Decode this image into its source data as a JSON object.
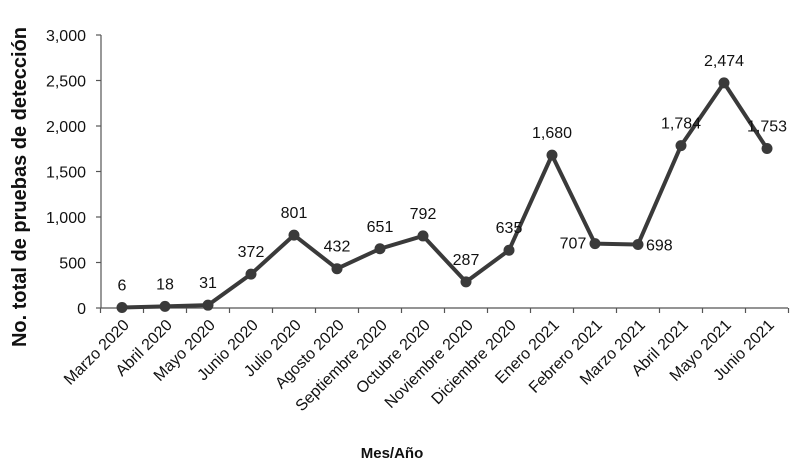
{
  "chart_data": {
    "type": "line",
    "title": "",
    "xlabel": "Mes/Año",
    "ylabel": "No. total de pruebas de detección",
    "ylim": [
      0,
      3000
    ],
    "yticks": [
      "0",
      "500",
      "1,000",
      "1,500",
      "2,000",
      "2,500",
      "3,000"
    ],
    "grid": false,
    "legend": "none",
    "line_color": "#3a3a3a",
    "categories": [
      "Marzo 2020",
      "Abril 2020",
      "Mayo 2020",
      "Junio 2020",
      "Julio 2020",
      "Agosto 2020",
      "Septiembre 2020",
      "Octubre 2020",
      "Noviembre 2020",
      "Diciembre 2020",
      "Enero 2021",
      "Febrero 2021",
      "Marzo 2021",
      "Abril 2021",
      "Mayo 2021",
      "Junio 2021"
    ],
    "values": [
      6,
      18,
      31,
      372,
      801,
      432,
      651,
      792,
      287,
      635,
      1680,
      707,
      698,
      1784,
      2474,
      1753
    ],
    "data_labels": [
      "6",
      "18",
      "31",
      "372",
      "801",
      "432",
      "651",
      "792",
      "287",
      "635",
      "1,680",
      "707",
      "698",
      "1,784",
      "2,474",
      "1,753"
    ]
  }
}
